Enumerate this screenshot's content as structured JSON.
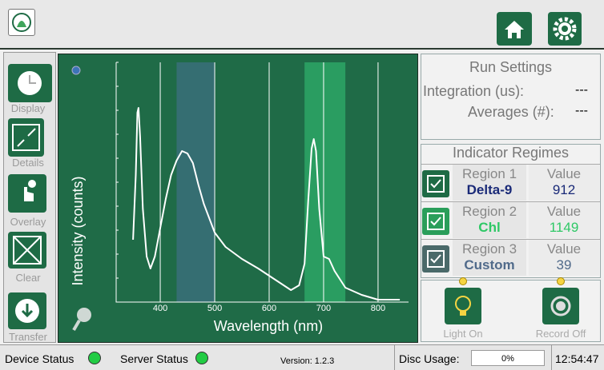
{
  "header": {},
  "sidebar": {
    "buttons": [
      "Display",
      "Details",
      "Overlay",
      "Clear",
      "Transfer"
    ]
  },
  "chart_data": {
    "type": "line",
    "xlabel": "Wavelength (nm)",
    "ylabel": "Intensity (counts)",
    "x": [
      350,
      355,
      358,
      360,
      363,
      368,
      375,
      382,
      390,
      400,
      410,
      420,
      430,
      440,
      450,
      460,
      470,
      480,
      500,
      520,
      550,
      580,
      600,
      620,
      640,
      655,
      665,
      672,
      678,
      682,
      686,
      692,
      700,
      710,
      720,
      740,
      770,
      800,
      840
    ],
    "values": [
      26,
      53,
      79,
      81,
      69,
      39,
      19,
      14,
      19,
      31,
      43,
      53,
      59,
      63,
      62,
      58,
      49,
      41,
      29,
      23,
      18,
      14,
      11,
      8,
      5,
      7,
      16,
      43,
      64,
      68,
      63,
      39,
      19,
      18,
      13,
      6,
      3,
      1,
      1
    ],
    "color": "#ffffff",
    "xlim": [
      319,
      856
    ],
    "xticks": [
      400,
      500,
      600,
      700,
      800
    ],
    "ylim": [
      0,
      100
    ],
    "grid": true,
    "regions": [
      {
        "start": 430,
        "end": 500,
        "color": "#3d6f80"
      },
      {
        "start": 665,
        "end": 740,
        "color": "#2fae6a"
      }
    ]
  },
  "run_settings": {
    "title": "Run Settings",
    "rows": [
      [
        "Integration (us):",
        "---"
      ],
      [
        "Averages (#):",
        "---"
      ]
    ]
  },
  "indicator_regimes": {
    "title": "Indicator Regimes",
    "rows": [
      {
        "region": "Region 1",
        "name": "Delta-9",
        "value_label": "Value",
        "value": "912"
      },
      {
        "region": "Region 2",
        "name": "Chl",
        "value_label": "Value",
        "value": "1149"
      },
      {
        "region": "Region 3",
        "name": "Custom",
        "value_label": "Value",
        "value": "39"
      }
    ]
  },
  "controls": [
    "Light On",
    "Record Off"
  ],
  "status_bar": {
    "device": "Device Status",
    "server": "Server Status",
    "version": "Version: 1.2.3",
    "disc": "Disc Usage:",
    "disc_value": "0%",
    "time": "12:54:47"
  }
}
